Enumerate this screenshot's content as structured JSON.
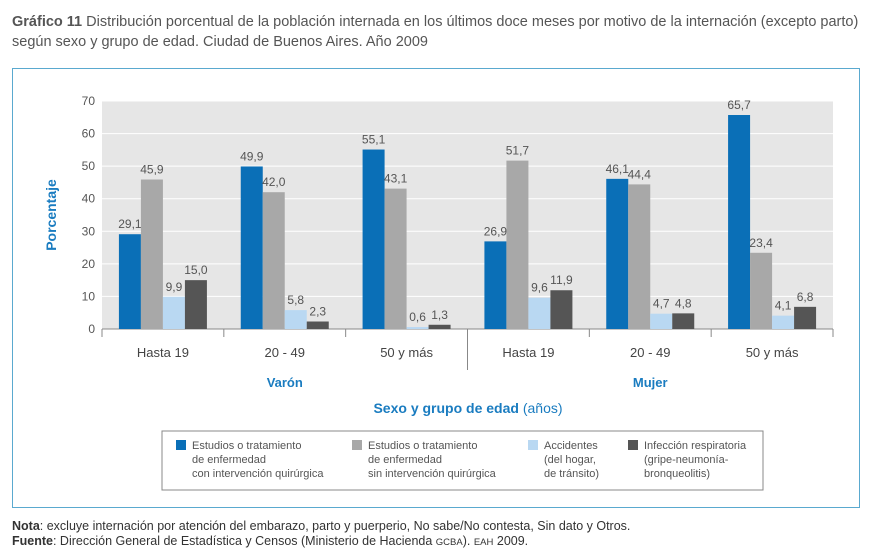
{
  "header": {
    "label": "Gráfico 11",
    "text": "Distribución porcentual de la población internada en los últimos doce meses por motivo de la internación (excepto parto) según sexo y grupo de edad. Ciudad de Buenos Aires. Año 2009"
  },
  "chart_data": {
    "type": "bar",
    "ylabel": "Porcentaje",
    "xlabel": "Sexo y grupo de edad",
    "xlabel_unit": "(años)",
    "ylim": [
      0,
      70
    ],
    "yticks": [
      "0",
      "10",
      "20",
      "30",
      "40",
      "50",
      "60",
      "70"
    ],
    "grid": true,
    "groups": [
      {
        "name": "Varón",
        "categories": [
          "Hasta 19",
          "20 - 49",
          "50 y más"
        ]
      },
      {
        "name": "Mujer",
        "categories": [
          "Hasta 19",
          "20 - 49",
          "50 y más"
        ]
      }
    ],
    "series": [
      {
        "name": "Estudios o tratamiento de enfermedad con intervención quirúrgica",
        "legend_lines": [
          "Estudios o tratamiento",
          "de enfermedad",
          "con intervención quirúrgica"
        ],
        "color": "#0a6fb7",
        "values": [
          29.1,
          49.9,
          55.1,
          26.9,
          46.1,
          65.7
        ],
        "labels": [
          "29,1",
          "49,9",
          "55,1",
          "26,9",
          "46,1",
          "65,7"
        ]
      },
      {
        "name": "Estudios o tratamiento de enfermedad sin intervención quirúrgica",
        "legend_lines": [
          "Estudios o tratamiento",
          "de enfermedad",
          "sin intervención quirúrgica"
        ],
        "color": "#a8a8a8",
        "values": [
          45.9,
          42.0,
          43.1,
          51.7,
          44.4,
          23.4
        ],
        "labels": [
          "45,9",
          "42,0",
          "43,1",
          "51,7",
          "44,4",
          "23,4"
        ]
      },
      {
        "name": "Accidentes (del hogar, de tránsito)",
        "legend_lines": [
          "Accidentes",
          "(del hogar,",
          "de tránsito)"
        ],
        "color": "#b9d8f2",
        "values": [
          9.9,
          5.8,
          0.6,
          9.6,
          4.7,
          4.1
        ],
        "labels": [
          "9,9",
          "5,8",
          "0,6",
          "9,6",
          "4,7",
          "4,1"
        ]
      },
      {
        "name": "Infección respiratoria (gripe-neumonía-bronqueolitis)",
        "legend_lines": [
          "Infección respiratoria",
          "(gripe-neumonía-",
          "bronqueolitis)"
        ],
        "color": "#555555",
        "values": [
          15.0,
          2.3,
          1.3,
          11.9,
          4.8,
          6.8
        ],
        "labels": [
          "15,0",
          "2,3",
          "1,3",
          "11,9",
          "4,8",
          "6,8"
        ]
      }
    ]
  },
  "notes": {
    "nota_label": "Nota",
    "nota_text": ": excluye internación por atención del embarazo, parto y puerperio, No sabe/No contesta, Sin dato y Otros.",
    "fuente_label": "Fuente",
    "fuente_text": ": Dirección General de Estadística y Censos (Ministerio de Hacienda ",
    "fuente_org": "GCBA",
    "fuente_mid": "). ",
    "fuente_survey": "EAH",
    "fuente_year": " 2009."
  }
}
